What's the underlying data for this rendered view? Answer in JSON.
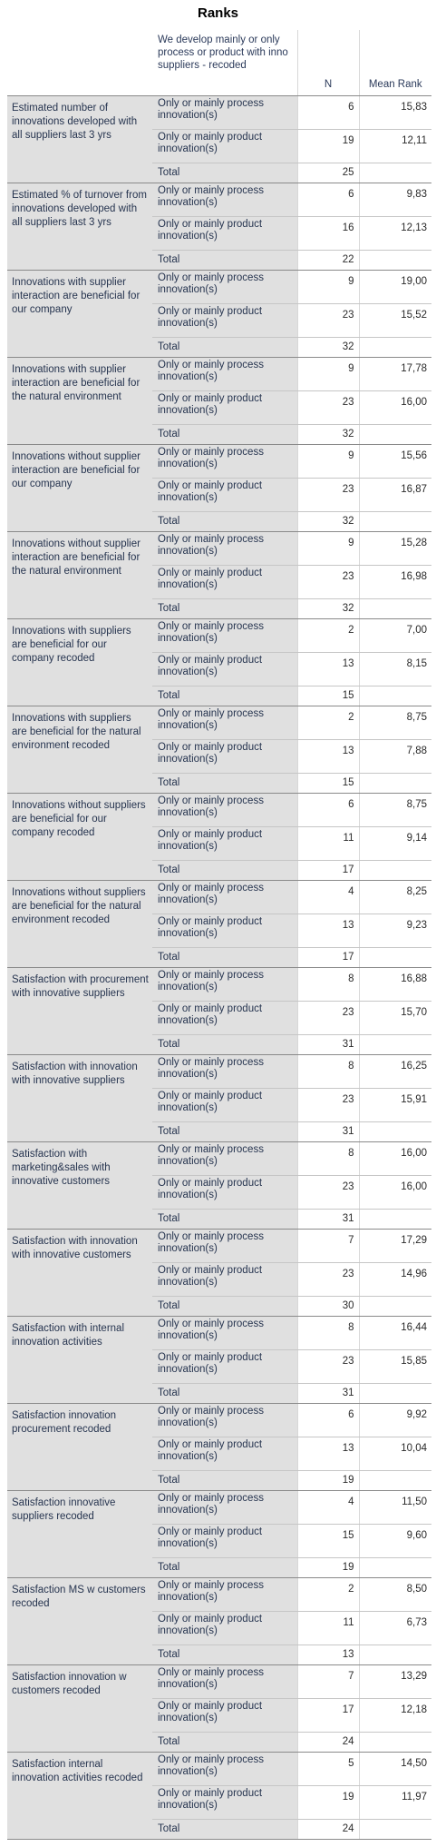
{
  "title": "Ranks",
  "headers": {
    "grouping": "We develop mainly or only process or product with inno suppliers - recoded",
    "n": "N",
    "mean_rank": "Mean Rank"
  },
  "labels": {
    "process": "Only or mainly process innovation(s)",
    "product": "Only or mainly product innovation(s)",
    "total": "Total"
  },
  "rows": [
    {
      "variable": "Estimated number of innovations developed with all suppliers last 3 yrs",
      "process_n": "6",
      "process_mr": "15,83",
      "product_n": "19",
      "product_mr": "12,11",
      "total_n": "25"
    },
    {
      "variable": "Estimated % of turnover from innovations developed with all suppliers last 3 yrs",
      "process_n": "6",
      "process_mr": "9,83",
      "product_n": "16",
      "product_mr": "12,13",
      "total_n": "22"
    },
    {
      "variable": "Innovations with supplier interaction are beneficial for our company",
      "process_n": "9",
      "process_mr": "19,00",
      "product_n": "23",
      "product_mr": "15,52",
      "total_n": "32"
    },
    {
      "variable": "Innovations with supplier interaction are beneficial for the natural environment",
      "process_n": "9",
      "process_mr": "17,78",
      "product_n": "23",
      "product_mr": "16,00",
      "total_n": "32"
    },
    {
      "variable": "Innovations without supplier interaction are beneficial for our company",
      "process_n": "9",
      "process_mr": "15,56",
      "product_n": "23",
      "product_mr": "16,87",
      "total_n": "32"
    },
    {
      "variable": "Innovations without supplier interaction are beneficial for the natural environment",
      "process_n": "9",
      "process_mr": "15,28",
      "product_n": "23",
      "product_mr": "16,98",
      "total_n": "32"
    },
    {
      "variable": "Innovations with suppliers are beneficial for our company recoded",
      "process_n": "2",
      "process_mr": "7,00",
      "product_n": "13",
      "product_mr": "8,15",
      "total_n": "15"
    },
    {
      "variable": "Innovations with suppliers are beneficial for the natural environment recoded",
      "process_n": "2",
      "process_mr": "8,75",
      "product_n": "13",
      "product_mr": "7,88",
      "total_n": "15"
    },
    {
      "variable": "Innovations without suppliers are beneficial for our company recoded",
      "process_n": "6",
      "process_mr": "8,75",
      "product_n": "11",
      "product_mr": "9,14",
      "total_n": "17"
    },
    {
      "variable": "Innovations without suppliers are beneficial for the natural environment recoded",
      "process_n": "4",
      "process_mr": "8,25",
      "product_n": "13",
      "product_mr": "9,23",
      "total_n": "17"
    },
    {
      "variable": "Satisfaction with procurement with innovative suppliers",
      "process_n": "8",
      "process_mr": "16,88",
      "product_n": "23",
      "product_mr": "15,70",
      "total_n": "31"
    },
    {
      "variable": "Satisfaction with innovation with innovative suppliers",
      "process_n": "8",
      "process_mr": "16,25",
      "product_n": "23",
      "product_mr": "15,91",
      "total_n": "31"
    },
    {
      "variable": "Satisfaction with marketing&sales with innovative customers",
      "process_n": "8",
      "process_mr": "16,00",
      "product_n": "23",
      "product_mr": "16,00",
      "total_n": "31"
    },
    {
      "variable": "Satisfaction with innovation with innovative customers",
      "process_n": "7",
      "process_mr": "17,29",
      "product_n": "23",
      "product_mr": "14,96",
      "total_n": "30"
    },
    {
      "variable": "Satisfaction with internal innovation activities",
      "process_n": "8",
      "process_mr": "16,44",
      "product_n": "23",
      "product_mr": "15,85",
      "total_n": "31"
    },
    {
      "variable": "Satisfaction innovation procurement recoded",
      "process_n": "6",
      "process_mr": "9,92",
      "product_n": "13",
      "product_mr": "10,04",
      "total_n": "19"
    },
    {
      "variable": "Satisfaction innovative suppliers recoded",
      "process_n": "4",
      "process_mr": "11,50",
      "product_n": "15",
      "product_mr": "9,60",
      "total_n": "19"
    },
    {
      "variable": "Satisfaction MS w customers recoded",
      "process_n": "2",
      "process_mr": "8,50",
      "product_n": "11",
      "product_mr": "6,73",
      "total_n": "13"
    },
    {
      "variable": "Satisfaction innovation w customers recoded",
      "process_n": "7",
      "process_mr": "13,29",
      "product_n": "17",
      "product_mr": "12,18",
      "total_n": "24"
    },
    {
      "variable": "Satisfaction internal innovation activities recoded",
      "process_n": "5",
      "process_mr": "14,50",
      "product_n": "19",
      "product_mr": "11,97",
      "total_n": "24"
    }
  ]
}
